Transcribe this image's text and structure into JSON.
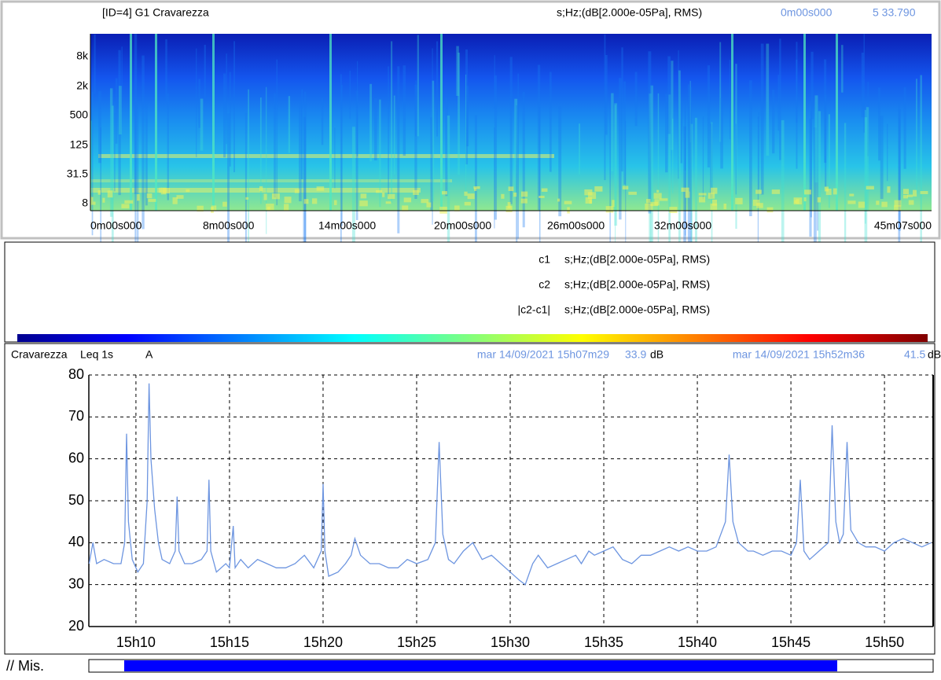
{
  "spectrogram": {
    "header": {
      "title": "[ID=4] G1 Cravarezza",
      "units": "s;Hz;(dB[2.000e-05Pa], RMS)",
      "cursor_time": "0m00s000",
      "cursor_value": "5 33.790"
    },
    "y_labels": [
      "8k",
      "2k",
      "500",
      "125",
      "31.5",
      "8"
    ],
    "x_labels": [
      "0m00s000",
      "8m00s000",
      "14m00s000",
      "20m00s000",
      "26m00s000",
      "32m00s000",
      "45m07s000"
    ]
  },
  "legend": {
    "rows": [
      {
        "name": "c1",
        "units": "s;Hz;(dB[2.000e-05Pa], RMS)"
      },
      {
        "name": "c2",
        "units": "s;Hz;(dB[2.000e-05Pa], RMS)"
      },
      {
        "name": "|c2-c1|",
        "units": "s;Hz;(dB[2.000e-05Pa], RMS)"
      }
    ]
  },
  "level_header": {
    "site": "Cravarezza",
    "metric": "Leq 1s",
    "weighting": "A",
    "cursors": [
      {
        "time": "mar 14/09/2021 15h07m29",
        "value": 33.9,
        "unit": "dB"
      },
      {
        "time": "mar 14/09/2021 15h52m36",
        "value": 41.5,
        "unit": "dB"
      }
    ]
  },
  "footer": {
    "label": "// Mis."
  },
  "chart_data": {
    "type": "line",
    "color": "#6d95e0",
    "grid": true,
    "xlim": [
      7.483,
      52.6
    ],
    "ylim": [
      20,
      80
    ],
    "xticks": [
      {
        "value": 10,
        "label": "15h10"
      },
      {
        "value": 15,
        "label": "15h15"
      },
      {
        "value": 20,
        "label": "15h20"
      },
      {
        "value": 25,
        "label": "15h25"
      },
      {
        "value": 30,
        "label": "15h30"
      },
      {
        "value": 35,
        "label": "15h35"
      },
      {
        "value": 40,
        "label": "15h40"
      },
      {
        "value": 45,
        "label": "15h45"
      },
      {
        "value": 50,
        "label": "15h50"
      }
    ],
    "yticks": [
      20,
      30,
      40,
      50,
      60,
      70,
      80
    ],
    "x": [
      7.5,
      7.7,
      7.9,
      8.3,
      8.8,
      9.2,
      9.4,
      9.5,
      9.6,
      9.8,
      10.1,
      10.4,
      10.6,
      10.7,
      10.8,
      11.0,
      11.2,
      11.4,
      11.8,
      12.1,
      12.2,
      12.3,
      12.6,
      13.0,
      13.5,
      13.8,
      13.9,
      14.0,
      14.3,
      14.8,
      15.0,
      15.2,
      15.3,
      15.6,
      16.0,
      16.5,
      17.0,
      17.5,
      18.0,
      18.5,
      19.0,
      19.5,
      19.9,
      20.0,
      20.1,
      20.3,
      20.8,
      21.2,
      21.5,
      21.7,
      22.0,
      22.5,
      23.0,
      23.5,
      24.0,
      24.5,
      25.0,
      25.6,
      26.0,
      26.2,
      26.4,
      26.7,
      27.0,
      27.5,
      28.0,
      28.5,
      29.0,
      29.5,
      30.0,
      30.5,
      30.8,
      31.2,
      31.5,
      32.0,
      32.5,
      33.0,
      33.5,
      33.8,
      34.2,
      34.5,
      35.0,
      35.5,
      36.0,
      36.5,
      37.0,
      37.5,
      38.0,
      38.5,
      39.0,
      39.5,
      40.0,
      40.5,
      41.0,
      41.5,
      41.7,
      41.9,
      42.2,
      42.7,
      43.0,
      43.5,
      44.0,
      44.5,
      45.0,
      45.3,
      45.5,
      45.7,
      46.0,
      46.5,
      47.0,
      47.2,
      47.4,
      47.6,
      47.8,
      48.0,
      48.2,
      48.6,
      49.0,
      49.5,
      50.0,
      50.5,
      51.0,
      51.5,
      52.0,
      52.5
    ],
    "values": [
      35,
      40,
      35,
      36,
      35,
      35,
      40,
      66,
      45,
      36,
      33,
      35,
      50,
      78,
      60,
      48,
      40,
      36,
      35,
      38,
      51,
      38,
      35,
      35,
      36,
      38,
      55,
      38,
      33,
      35,
      34,
      44,
      34,
      36,
      34,
      36,
      35,
      34,
      34,
      35,
      37,
      34,
      38,
      54,
      38,
      32,
      33,
      35,
      37,
      41,
      37,
      35,
      35,
      34,
      34,
      36,
      35,
      36,
      40,
      64,
      42,
      36,
      35,
      38,
      40,
      36,
      37,
      35,
      33,
      31,
      30,
      35,
      37,
      34,
      35,
      36,
      37,
      35,
      38,
      37,
      38,
      39,
      36,
      35,
      37,
      37,
      38,
      39,
      38,
      39,
      38,
      38,
      39,
      45,
      61,
      45,
      40,
      38,
      38,
      37,
      38,
      38,
      37,
      40,
      55,
      38,
      36,
      38,
      40,
      68,
      45,
      40,
      42,
      64,
      43,
      40,
      39,
      39,
      38,
      40,
      41,
      40,
      39,
      40
    ]
  }
}
